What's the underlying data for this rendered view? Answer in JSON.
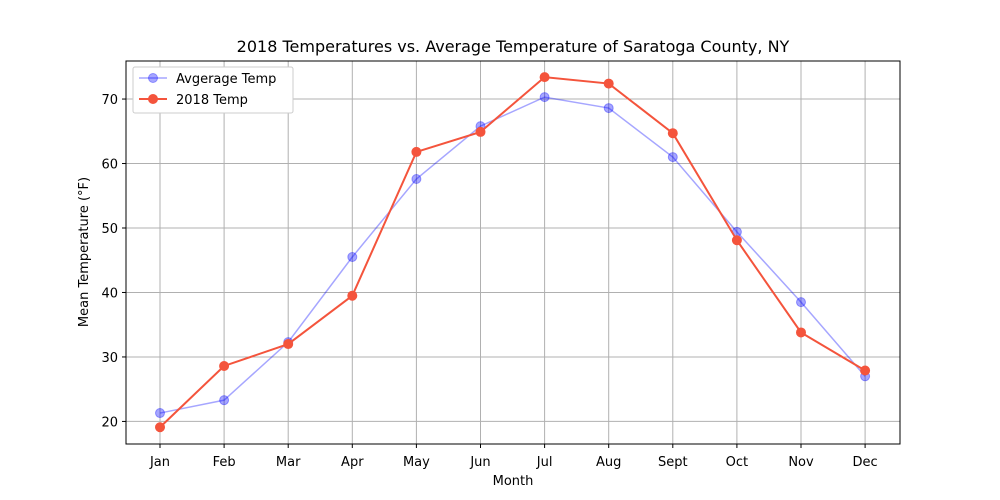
{
  "chart_data": {
    "type": "line",
    "title": "2018 Temperatures vs. Average Temperature of Saratoga County, NY",
    "xlabel": "Month",
    "ylabel": "Mean Temperature (°F)",
    "categories": [
      "Jan",
      "Feb",
      "Mar",
      "Apr",
      "May",
      "Jun",
      "Jul",
      "Aug",
      "Sept",
      "Oct",
      "Nov",
      "Dec"
    ],
    "ylim": [
      16.5,
      75.9
    ],
    "yticks": [
      20,
      30,
      40,
      50,
      60,
      70
    ],
    "grid": true,
    "legend_position": "top-left",
    "series": [
      {
        "name": "Avgerage Temp",
        "values": [
          21.3,
          23.3,
          32.3,
          45.5,
          57.6,
          65.8,
          70.3,
          68.6,
          61.0,
          49.4,
          38.5,
          27.0
        ],
        "color": "#0000ff",
        "opacity": 0.35
      },
      {
        "name": "2018 Temp",
        "values": [
          19.1,
          28.6,
          32.0,
          39.5,
          61.8,
          64.9,
          73.4,
          72.4,
          64.7,
          48.1,
          33.8,
          27.9
        ],
        "color": "#f4543c",
        "opacity": 1.0
      }
    ]
  }
}
